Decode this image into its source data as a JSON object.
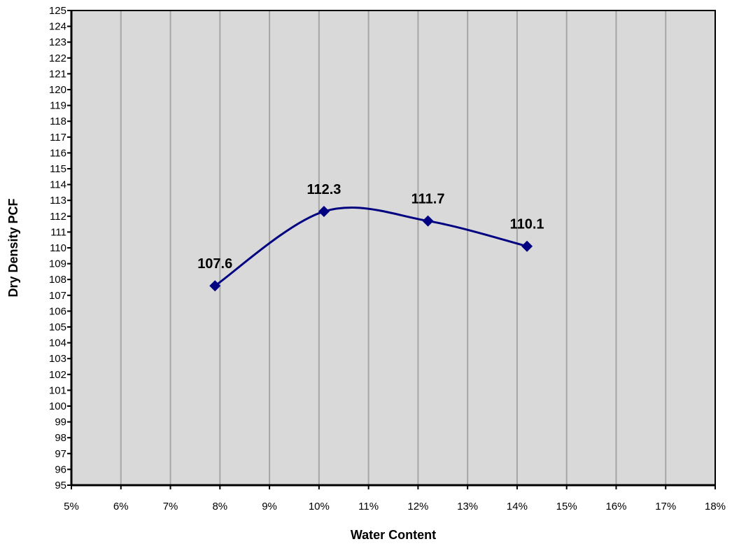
{
  "chart_data": {
    "type": "line",
    "title": "",
    "xlabel": "Water Content",
    "ylabel": "Dry Density PCF",
    "xlim": [
      5,
      18
    ],
    "ylim": [
      95,
      125
    ],
    "x_ticks": [
      "5%",
      "6%",
      "7%",
      "8%",
      "9%",
      "10%",
      "11%",
      "12%",
      "13%",
      "14%",
      "15%",
      "16%",
      "17%",
      "18%"
    ],
    "y_ticks": [
      "95",
      "96",
      "97",
      "98",
      "99",
      "100",
      "101",
      "102",
      "103",
      "104",
      "105",
      "106",
      "107",
      "108",
      "109",
      "110",
      "111",
      "112",
      "113",
      "114",
      "115",
      "116",
      "117",
      "118",
      "119",
      "120",
      "121",
      "122",
      "123",
      "124",
      "125"
    ],
    "grid": "vertical",
    "smooth": true,
    "series": [
      {
        "x": [
          7.9,
          10.1,
          12.2,
          14.2
        ],
        "y": [
          107.6,
          112.3,
          111.7,
          110.1
        ],
        "labels": [
          "107.6",
          "112.3",
          "111.7",
          "110.1"
        ],
        "marker": "diamond",
        "color": "#000080"
      }
    ],
    "colors": {
      "plot_bg": "#d9d9d9",
      "gridline": "#a6a6a6",
      "axis": "#000000"
    }
  }
}
